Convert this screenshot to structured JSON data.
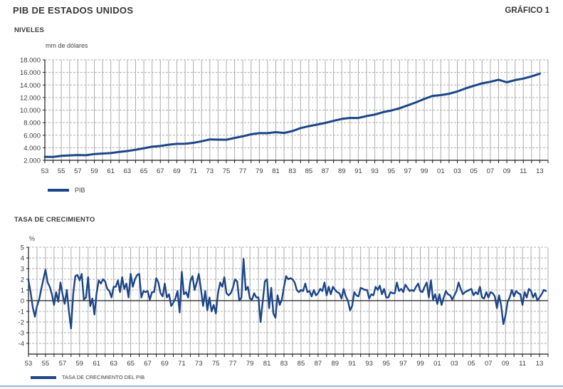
{
  "page": {
    "title": "PIB DE ESTADOS UNIDOS",
    "figure_label": "GRÁFICO 1"
  },
  "colors": {
    "line": "#1D4688",
    "grid": "#ADADAD",
    "axis": "#1A1A1A",
    "text": "#3D3D3D",
    "footer_line": "#9DB9D8"
  },
  "chart_data": [
    {
      "type": "line",
      "section_title": "NIVELES",
      "unit_label": "mm de dólares",
      "legend": "PIB",
      "series_name": "pib-levels-line",
      "x_range": [
        1953,
        2014
      ],
      "points_per_year": 1,
      "x_tick_labels": [
        "53",
        "55",
        "57",
        "59",
        "61",
        "63",
        "65",
        "67",
        "69",
        "71",
        "73",
        "75",
        "77",
        "79",
        "81",
        "83",
        "85",
        "87",
        "89",
        "91",
        "93",
        "95",
        "97",
        "99",
        "01",
        "03",
        "05",
        "07",
        "09",
        "11",
        "13"
      ],
      "ylim": [
        2000,
        18000
      ],
      "y_tick_values": [
        2000,
        4000,
        6000,
        8000,
        10000,
        12000,
        14000,
        16000,
        18000
      ],
      "y_tick_labels": [
        "2.000",
        "4.000",
        "6.000",
        "8.000",
        "10.000",
        "12.000",
        "14.000",
        "16.000",
        "18.000"
      ],
      "start_year": 1953,
      "values": [
        2556,
        2540,
        2720,
        2780,
        2835,
        2800,
        3000,
        3080,
        3150,
        3340,
        3480,
        3680,
        3920,
        4170,
        4280,
        4490,
        4620,
        4630,
        4780,
        5030,
        5320,
        5290,
        5280,
        5560,
        5820,
        6140,
        6330,
        6320,
        6480,
        6360,
        6650,
        7130,
        7430,
        7690,
        7960,
        8290,
        8590,
        8750,
        8740,
        9050,
        9290,
        9670,
        9930,
        10300,
        10760,
        11240,
        11770,
        12260,
        12380,
        12600,
        12960,
        13450,
        13870,
        14250,
        14510,
        14830,
        14420,
        14780,
        15020,
        15370,
        15800
      ]
    },
    {
      "type": "line",
      "section_title": "TASA DE CRECIMIENTO",
      "unit_label": "%",
      "legend": "TASA DE CRECIMIENTO DEL PIB",
      "series_name": "pib-growth-line",
      "x_range": [
        1953,
        2014
      ],
      "points_per_year": 4,
      "x_tick_labels": [
        "53",
        "55",
        "57",
        "59",
        "61",
        "63",
        "65",
        "67",
        "69",
        "71",
        "73",
        "75",
        "77",
        "79",
        "81",
        "83",
        "85",
        "87",
        "89",
        "91",
        "93",
        "95",
        "97",
        "99",
        "01",
        "03",
        "05",
        "07",
        "09",
        "11",
        "13"
      ],
      "ylim": [
        -5,
        5
      ],
      "y_tick_values": [
        5,
        4,
        3,
        2,
        1,
        0,
        -1,
        -2,
        -3,
        -4
      ],
      "y_tick_labels": [
        "5",
        "4",
        "3",
        "2",
        "1",
        "0",
        "-1",
        "-2",
        "-3",
        "-4"
      ],
      "zero_line": true,
      "start_year": 1953,
      "values": [
        1.9,
        0.8,
        -0.6,
        -1.5,
        -0.5,
        0.1,
        1.1,
        2.0,
        2.9,
        1.7,
        1.3,
        0.6,
        -0.4,
        0.8,
        -0.1,
        1.7,
        0.6,
        -0.3,
        1.0,
        -1.0,
        -2.6,
        0.6,
        2.3,
        2.4,
        1.9,
        2.5,
        0.1,
        0.3,
        2.2,
        -0.5,
        0.2,
        -1.3,
        0.7,
        1.9,
        1.6,
        2.0,
        1.8,
        1.1,
        0.9,
        0.3,
        1.3,
        1.3,
        1.9,
        0.8,
        2.2,
        1.1,
        1.6,
        0.3,
        2.5,
        1.3,
        2.0,
        2.4,
        2.5,
        0.3,
        0.9,
        0.8,
        0.9,
        0.1,
        0.8,
        0.8,
        2.1,
        1.7,
        0.7,
        0.4,
        1.6,
        0.3,
        0.6,
        -0.5,
        -0.2,
        0.2,
        0.9,
        -1.1,
        2.7,
        0.6,
        0.8,
        0.3,
        1.8,
        2.3,
        1.0,
        1.7,
        2.5,
        1.1,
        -0.5,
        0.9,
        -0.9,
        0.3,
        -1.0,
        -0.4,
        -1.2,
        0.7,
        1.7,
        1.3,
        2.2,
        0.7,
        0.5,
        0.7,
        1.2,
        2.0,
        1.8,
        0.0,
        0.3,
        3.9,
        1.0,
        1.3,
        0.2,
        0.1,
        0.7,
        0.3,
        0.3,
        -2.0,
        -0.1,
        1.8,
        2.0,
        -0.7,
        1.2,
        -1.2,
        -1.6,
        0.5,
        -0.4,
        0.1,
        1.3,
        2.3,
        2.0,
        2.1,
        2.0,
        1.7,
        1.0,
        0.8,
        1.0,
        0.9,
        1.6,
        0.8,
        0.9,
        0.4,
        1.0,
        0.5,
        0.7,
        1.1,
        0.9,
        1.7,
        0.5,
        1.3,
        0.6,
        1.3,
        1.0,
        0.8,
        0.7,
        0.2,
        1.1,
        0.4,
        0.0,
        -0.9,
        -0.5,
        0.8,
        0.5,
        0.4,
        1.2,
        1.1,
        1.0,
        1.0,
        0.2,
        0.6,
        0.5,
        1.3,
        1.0,
        1.4,
        0.6,
        1.1,
        0.3,
        0.3,
        0.8,
        0.7,
        0.7,
        1.7,
        0.9,
        1.1,
        0.8,
        1.5,
        1.2,
        0.9,
        1.0,
        0.9,
        1.3,
        1.6,
        0.9,
        0.8,
        1.3,
        1.7,
        0.3,
        1.9,
        0.1,
        0.6,
        -0.3,
        0.6,
        -0.4,
        0.3,
        0.9,
        0.6,
        0.5,
        0.1,
        0.5,
        0.9,
        1.7,
        1.1,
        0.6,
        0.8,
        0.9,
        1.0,
        1.1,
        0.5,
        0.8,
        0.6,
        1.3,
        0.3,
        0.2,
        0.8,
        0.3,
        0.8,
        0.7,
        0.4,
        -0.7,
        0.5,
        -0.5,
        -2.2,
        -1.4,
        -0.1,
        0.3,
        1.0,
        0.4,
        0.9,
        0.7,
        0.6,
        -0.4,
        0.8,
        0.3,
        1.1,
        0.9,
        0.3,
        0.7,
        0.0,
        0.3,
        0.6,
        1.0,
        0.9
      ]
    }
  ]
}
